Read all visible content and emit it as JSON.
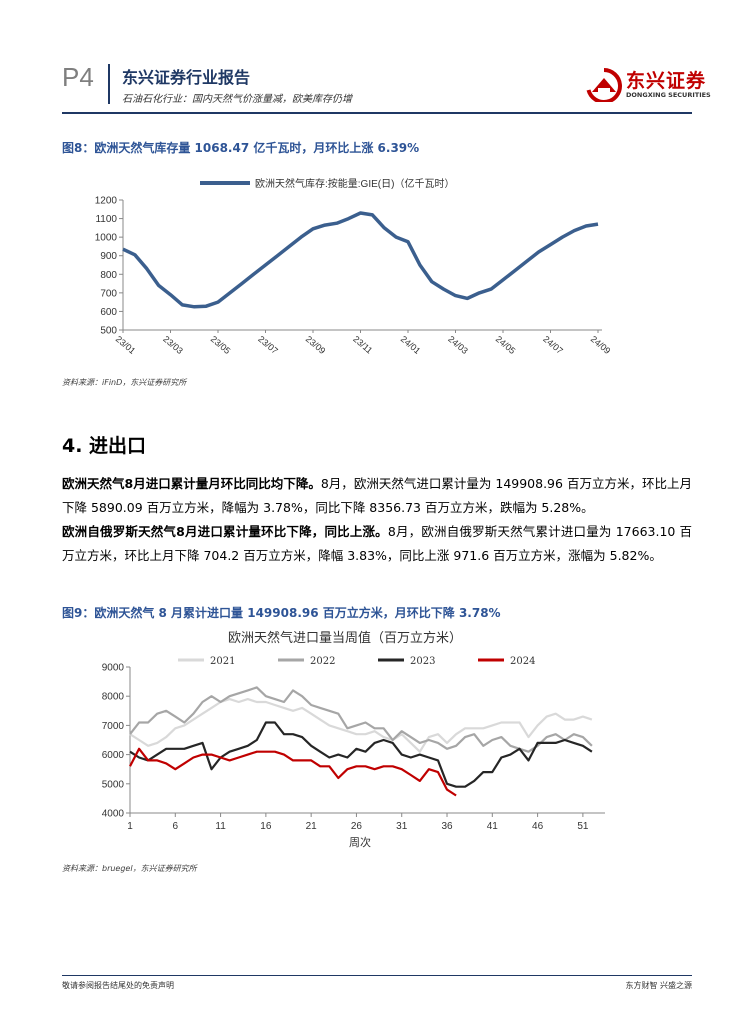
{
  "header": {
    "page": "P4",
    "title": "东兴证券行业报告",
    "subtitle": "石油石化行业：国内天然气价涨量减，欧美库存仍增",
    "logo_name": "东兴证券",
    "logo_en": "DONGXING SECURITIES"
  },
  "figures": [
    {
      "caption": "图8：欧洲天然气库存量 1068.47 亿千瓦时，月环比上涨 6.39%",
      "source": "资料来源：iFinD，东兴证券研究所"
    },
    {
      "caption": "图9：欧洲天然气 8 月累计进口量 149908.96 百万立方米，月环比下降 3.78%",
      "source": "资料来源：bruegel，东兴证券研究所"
    }
  ],
  "section": {
    "heading": "4. 进出口"
  },
  "paragraphs": [
    {
      "lead": "欧洲天然气8月进口累计量月环比同比均下降。",
      "text": "8月，欧洲天然气进口累计量为 149908.96 百万立方米，环比上月下降 5890.09 百万立方米，降幅为 3.78%，同比下降 8356.73 百万立方米，跌幅为 5.28%。"
    },
    {
      "lead": "欧洲自俄罗斯天然气8月进口累计量环比下降，同比上涨。",
      "text": "8月，欧洲自俄罗斯天然气累计进口量为 17663.10 百万立方米，环比上月下降 704.2 百万立方米，降幅 3.83%，同比上涨 971.6 百万立方米，涨幅为 5.82%。"
    }
  ],
  "footer": {
    "left": "敬请参阅报告结尾处的免责声明",
    "right": "东方财智 兴盛之源"
  },
  "chart_data": [
    {
      "type": "line",
      "categories": [
        "23/01",
        null,
        null,
        null,
        "23/03",
        null,
        null,
        null,
        "23/05",
        null,
        null,
        null,
        "23/07",
        null,
        null,
        null,
        "23/09",
        null,
        null,
        null,
        "23/11",
        null,
        null,
        null,
        "24/01",
        null,
        null,
        null,
        "24/03",
        null,
        null,
        null,
        "24/05",
        null,
        null,
        null,
        "24/07",
        null,
        null,
        null,
        "24/09"
      ],
      "series": [
        {
          "name": "欧洲天然气库存:按能量:GIE(日)（亿千瓦时）",
          "color": "#3b5f8e",
          "values": [
            935,
            905,
            830,
            740,
            690,
            635,
            625,
            628,
            650,
            700,
            750,
            800,
            850,
            900,
            950,
            1000,
            1045,
            1065,
            1075,
            1100,
            1130,
            1120,
            1050,
            1000,
            975,
            850,
            760,
            720,
            685,
            670,
            700,
            720,
            770,
            820,
            870,
            920,
            960,
            1000,
            1035,
            1060,
            1070
          ]
        }
      ],
      "ylim": [
        500,
        1200
      ],
      "yticks": [
        500,
        600,
        700,
        800,
        900,
        1000,
        1100,
        1200
      ],
      "legend": "top"
    },
    {
      "type": "line",
      "title": "欧洲天然气进口量当周值（百万立方米）",
      "xlabel": "周次",
      "x": [
        1,
        2,
        3,
        4,
        5,
        6,
        7,
        8,
        9,
        10,
        11,
        12,
        13,
        14,
        15,
        16,
        17,
        18,
        19,
        20,
        21,
        22,
        23,
        24,
        25,
        26,
        27,
        28,
        29,
        30,
        31,
        32,
        33,
        34,
        35,
        36,
        37,
        38,
        39,
        40,
        41,
        42,
        43,
        44,
        45,
        46,
        47,
        48,
        49,
        50,
        51,
        52
      ],
      "xlim": [
        1,
        53
      ],
      "xticks": [
        1,
        6,
        11,
        16,
        21,
        26,
        31,
        36,
        41,
        46,
        51
      ],
      "ylim": [
        4000,
        9000
      ],
      "yticks": [
        4000,
        5000,
        6000,
        7000,
        8000,
        9000
      ],
      "legend": "top",
      "series": [
        {
          "name": "2021",
          "color": "#d9d9d9",
          "values": [
            6700,
            6500,
            6300,
            6400,
            6600,
            6900,
            7000,
            7200,
            7400,
            7600,
            7800,
            7900,
            7800,
            7900,
            7800,
            7800,
            7700,
            7600,
            7500,
            7600,
            7400,
            7200,
            7000,
            6900,
            6800,
            6700,
            6700,
            6800,
            6600,
            6500,
            6700,
            6400,
            6100,
            6600,
            6700,
            6400,
            6700,
            6900,
            6900,
            6900,
            7000,
            7100,
            7100,
            7100,
            6600,
            7000,
            7300,
            7400,
            7200,
            7200,
            7300,
            7200
          ]
        },
        {
          "name": "2022",
          "color": "#a6a6a6",
          "values": [
            6700,
            7100,
            7100,
            7400,
            7500,
            7300,
            7100,
            7400,
            7800,
            8000,
            7800,
            8000,
            8100,
            8200,
            8300,
            8000,
            7900,
            7800,
            8200,
            8000,
            7700,
            7600,
            7500,
            7400,
            6900,
            7000,
            7100,
            6900,
            6900,
            6500,
            6800,
            6600,
            6400,
            6500,
            6400,
            6200,
            6300,
            6600,
            6700,
            6300,
            6500,
            6600,
            6300,
            6200,
            6100,
            6300,
            6600,
            6700,
            6500,
            6700,
            6600,
            6300
          ]
        },
        {
          "name": "2023",
          "color": "#262626",
          "values": [
            6100,
            5900,
            5800,
            6000,
            6200,
            6200,
            6200,
            6300,
            6400,
            5500,
            5900,
            6100,
            6200,
            6300,
            6500,
            7100,
            7100,
            6700,
            6700,
            6600,
            6300,
            6100,
            5900,
            6000,
            5900,
            6200,
            6100,
            6400,
            6500,
            6400,
            6000,
            5900,
            6000,
            5900,
            5800,
            5000,
            4900,
            4900,
            5100,
            5400,
            5400,
            5900,
            6000,
            6200,
            5800,
            6400,
            6400,
            6400,
            6500,
            6400,
            6300,
            6100
          ]
        },
        {
          "name": "2024",
          "color": "#c00000",
          "values": [
            5600,
            6200,
            5800,
            5800,
            5700,
            5500,
            5700,
            5900,
            6000,
            6000,
            5900,
            5800,
            5900,
            6000,
            6100,
            6100,
            6100,
            6000,
            5800,
            5800,
            5800,
            5600,
            5600,
            5200,
            5500,
            5600,
            5600,
            5500,
            5600,
            5600,
            5500,
            5300,
            5100,
            5500,
            5400,
            4800,
            4600,
            null,
            null,
            null,
            null,
            null,
            null,
            null,
            null,
            null,
            null,
            null,
            null,
            null,
            null,
            null
          ]
        }
      ]
    }
  ]
}
